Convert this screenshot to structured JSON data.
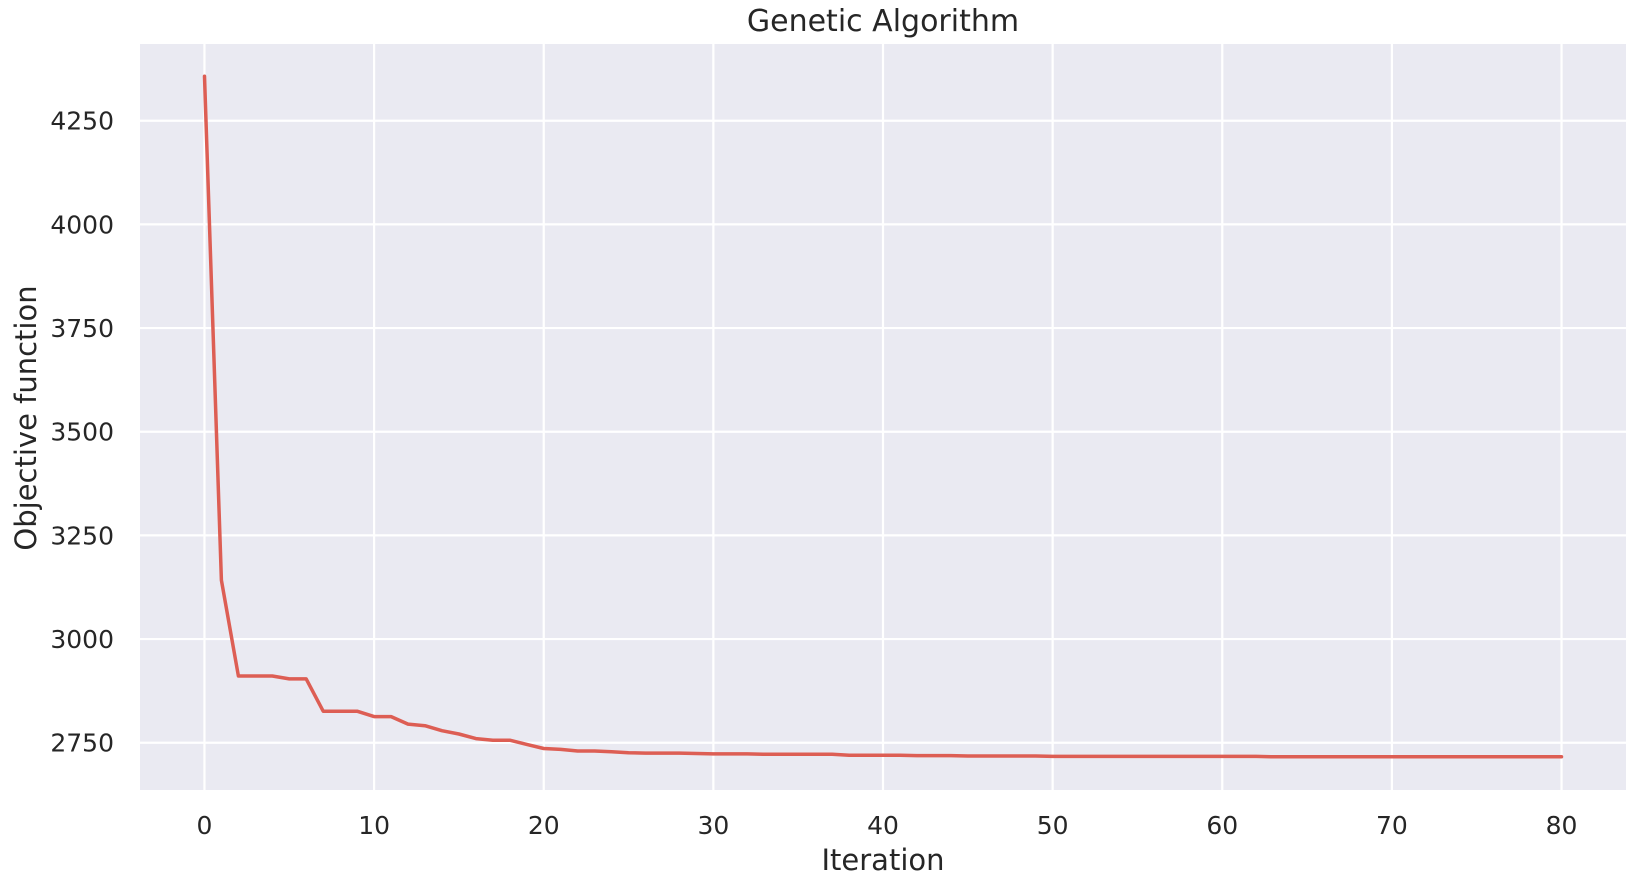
{
  "chart_data": {
    "type": "line",
    "title": "Genetic Algorithm",
    "xlabel": "Iteration",
    "ylabel": "Objective function",
    "xlim": [
      -3.8,
      83.8
    ],
    "ylim": [
      2636,
      4435
    ],
    "xticks": [
      0,
      10,
      20,
      30,
      40,
      50,
      60,
      70,
      80
    ],
    "yticks": [
      2750,
      3000,
      3250,
      3500,
      3750,
      4000,
      4250
    ],
    "grid": true,
    "line_color": "#dd5e54",
    "background_color": "#eaeaf2",
    "grid_color": "#ffffff",
    "series": [
      {
        "x": [
          0,
          1,
          2,
          3,
          4,
          5,
          6,
          7,
          8,
          9,
          10,
          11,
          12,
          13,
          14,
          15,
          16,
          17,
          18,
          19,
          20,
          21,
          22,
          23,
          24,
          25,
          26,
          27,
          28,
          29,
          30,
          31,
          32,
          33,
          34,
          35,
          36,
          37,
          38,
          39,
          40,
          41,
          42,
          43,
          44,
          45,
          46,
          47,
          48,
          49,
          50,
          51,
          52,
          53,
          54,
          55,
          56,
          57,
          58,
          59,
          60,
          61,
          62,
          63,
          64,
          65,
          66,
          67,
          68,
          69,
          70,
          71,
          72,
          73,
          74,
          75,
          76,
          77,
          78,
          79,
          80
        ],
        "values": [
          4357,
          3142,
          2911,
          2911,
          2911,
          2904,
          2904,
          2826,
          2826,
          2826,
          2813,
          2813,
          2795,
          2791,
          2779,
          2771,
          2760,
          2756,
          2756,
          2746,
          2736,
          2734,
          2730,
          2730,
          2728,
          2726,
          2725,
          2725,
          2725,
          2724,
          2723,
          2723,
          2723,
          2722,
          2722,
          2722,
          2722,
          2722,
          2720,
          2720,
          2720,
          2720,
          2719,
          2719,
          2719,
          2718,
          2718,
          2718,
          2718,
          2718,
          2717,
          2717,
          2717,
          2717,
          2717,
          2717,
          2717,
          2717,
          2717,
          2717,
          2717,
          2717,
          2717,
          2716,
          2716,
          2716,
          2716,
          2716,
          2716,
          2716,
          2716,
          2716,
          2716,
          2716,
          2716,
          2716,
          2716,
          2716,
          2716,
          2716,
          2716
        ]
      }
    ]
  }
}
